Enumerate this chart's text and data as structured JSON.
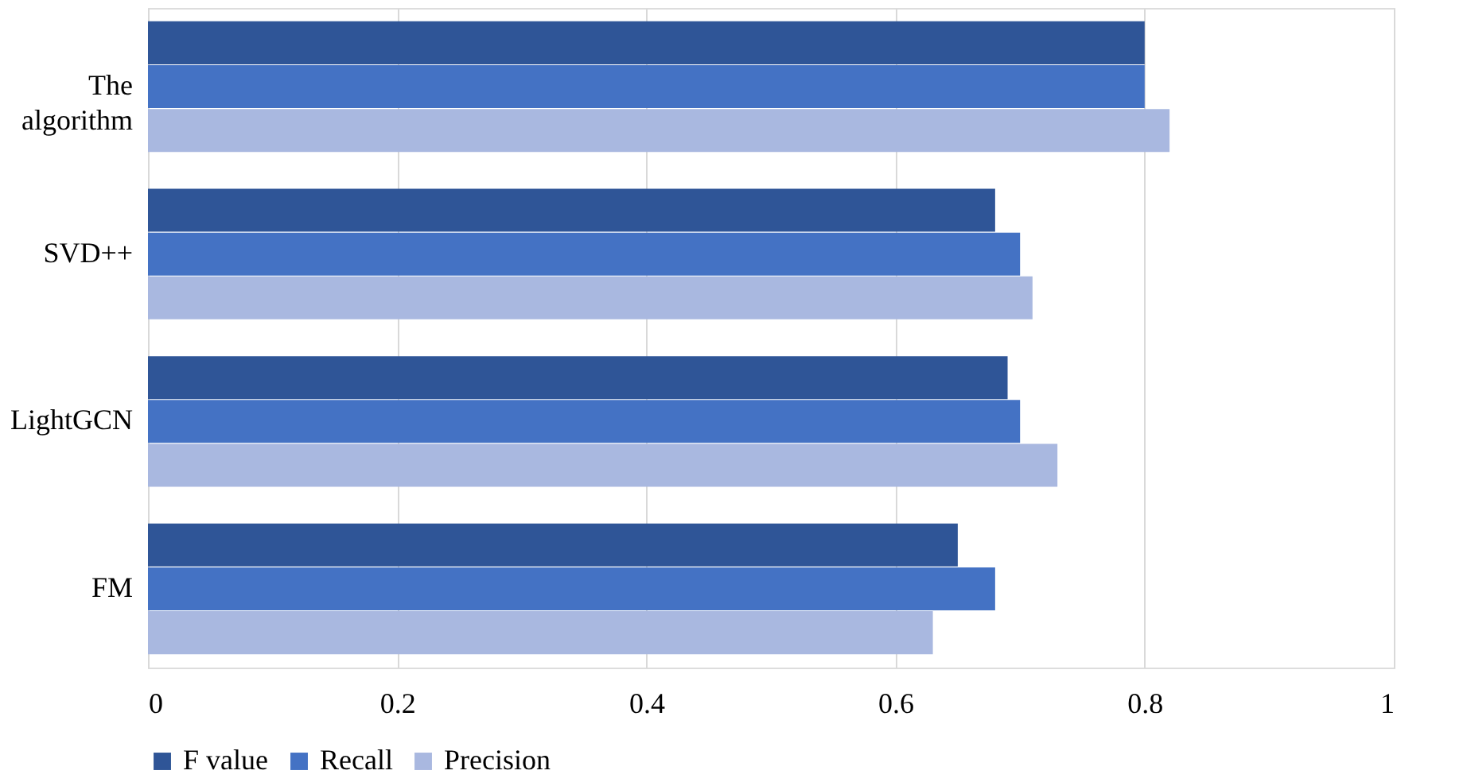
{
  "chart_data": {
    "type": "bar",
    "orientation": "horizontal",
    "categories": [
      "The algorithm",
      "SVD++",
      "LightGCN",
      "FM"
    ],
    "series": [
      {
        "name": "F value",
        "color": "#2f5597",
        "values": [
          0.8,
          0.68,
          0.69,
          0.65
        ]
      },
      {
        "name": "Recall",
        "color": "#4472c4",
        "values": [
          0.8,
          0.7,
          0.7,
          0.68
        ]
      },
      {
        "name": "Precision",
        "color": "#a9b8e0",
        "values": [
          0.82,
          0.71,
          0.73,
          0.63
        ]
      }
    ],
    "xlim": [
      0,
      1
    ],
    "xticks": [
      0,
      0.2,
      0.4,
      0.6,
      0.8,
      1
    ],
    "grid": "x",
    "legend": "bottom"
  }
}
